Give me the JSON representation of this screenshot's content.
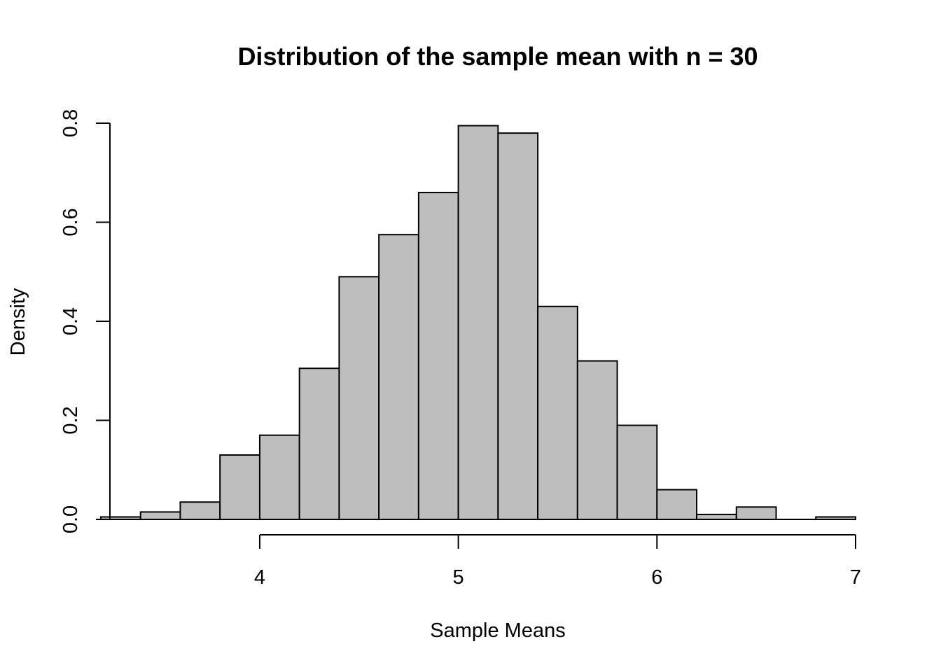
{
  "chart_data": {
    "type": "bar",
    "title": "Distribution of the sample mean with n = 30",
    "xlabel": "Sample Means",
    "ylabel": "Density",
    "bin_edges": [
      3.2,
      3.4,
      3.6,
      3.8,
      4.0,
      4.2,
      4.4,
      4.6,
      4.8,
      5.0,
      5.2,
      5.4,
      5.6,
      5.8,
      6.0,
      6.2,
      6.4,
      6.6,
      6.8,
      7.0
    ],
    "values": [
      0.005,
      0.015,
      0.035,
      0.13,
      0.17,
      0.305,
      0.49,
      0.575,
      0.66,
      0.795,
      0.78,
      0.43,
      0.32,
      0.19,
      0.06,
      0.01,
      0.025,
      0.0,
      0.005
    ],
    "xlim": [
      3.2,
      7.0
    ],
    "ylim": [
      0,
      0.8
    ],
    "x_ticks": [
      4,
      5,
      6,
      7
    ],
    "x_tick_labels": [
      "4",
      "5",
      "6",
      "7"
    ],
    "y_ticks": [
      0.0,
      0.2,
      0.4,
      0.6,
      0.8
    ],
    "y_tick_labels": [
      "0.0",
      "0.2",
      "0.4",
      "0.6",
      "0.8"
    ],
    "bar_color": "#bebebe",
    "grid": false,
    "legend": "none"
  }
}
